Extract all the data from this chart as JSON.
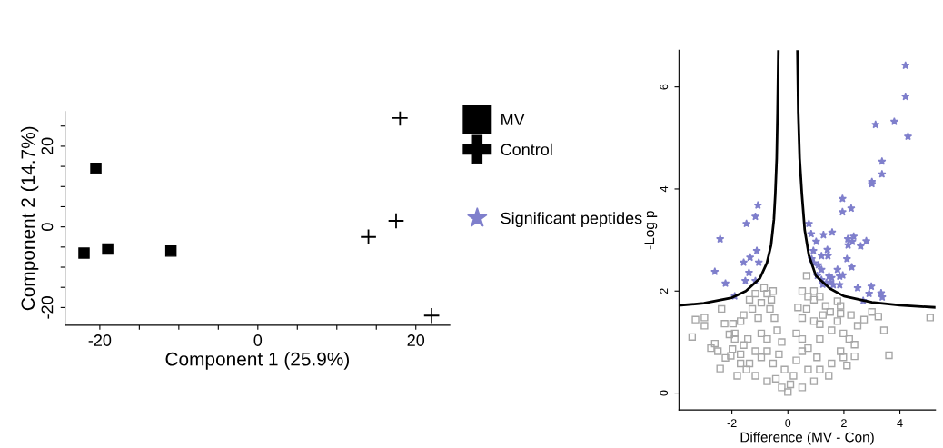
{
  "chart_data": [
    {
      "type": "scatter",
      "xlabel": "Component 1 (25.9%)",
      "ylabel": "Component 2 (14.7%)",
      "xlim": [
        -24.4,
        24.3
      ],
      "ylim": [
        -24.4,
        28.6
      ],
      "xticks": [
        -20,
        {
          "value": -15,
          "label": null
        },
        {
          "value": -10,
          "label": null
        },
        {
          "value": -5,
          "label": null
        },
        0,
        {
          "value": 5,
          "label": null
        },
        {
          "value": 10,
          "label": null
        },
        {
          "value": 15,
          "label": null
        },
        20
      ],
      "yticks": [
        -20,
        {
          "value": -15,
          "label": null
        },
        {
          "value": -10,
          "label": null
        },
        {
          "value": -5,
          "label": null
        },
        0,
        {
          "value": 5,
          "label": null
        },
        {
          "value": 10,
          "label": null
        },
        {
          "value": 15,
          "label": null
        },
        20,
        {
          "value": 25,
          "label": null
        }
      ],
      "grid": false,
      "legend": "right",
      "series": [
        {
          "name": "MV",
          "color": "#000000",
          "marker": "square",
          "x": [
            -20.5,
            -22,
            -19,
            -11
          ],
          "values": [
            14.5,
            -6.5,
            -5.5,
            -6
          ]
        },
        {
          "name": "Control",
          "color": "#000000",
          "marker": "cross",
          "x": [
            18,
            14,
            17.5,
            22
          ],
          "values": [
            27,
            -2.5,
            1.5,
            -22
          ]
        }
      ]
    },
    {
      "type": "scatter",
      "xlabel": "Difference (MV - Con)",
      "ylabel": "-Log p",
      "xlim": [
        -3.89,
        5.27
      ],
      "ylim": [
        -0.33,
        6.72
      ],
      "xticks": [
        -2,
        0,
        2,
        4
      ],
      "yticks": [
        0,
        2,
        4,
        6
      ],
      "grid": false,
      "legend": "left",
      "series": [
        {
          "color": "#a6a6a6",
          "marker": "square",
          "x": [
            -0.53,
            -0.85,
            -1.16,
            -1.37,
            -1.27,
            -1.58,
            -1.69,
            -0.95,
            -0.64,
            -0.48,
            -0.38,
            -0.22,
            -0.74,
            -0.95,
            -0.32,
            -0.74,
            -1.16,
            -1.58,
            -1.69,
            -1.48,
            -1.69,
            -1.9,
            -1.9,
            -0.12,
            -0.53,
            -0.95,
            -1.37,
            -1.16,
            -0.74,
            -0.43,
            -0.22,
            0,
            -0.74,
            -0.59,
            -1.06,
            -1.43,
            0.67,
            0.51,
            0.72,
            0.93,
            1.14,
            1.25,
            0.93,
            0.51,
            0.36,
            0.3,
            0.51,
            0.72,
            1.14,
            1.56,
            1.98,
            1.88,
            1.56,
            1.46,
            1.14,
            0.72,
            0.3,
            0.2,
            0.09,
            1.51,
            1.88,
            1.77,
            1.35,
            0.93,
            0.67,
            1.14,
            1.77,
            2.19,
            1.98,
            1.04,
            0.51,
            0.93,
            0.51,
            -3.42,
            -3.3,
            -2.98,
            -2.98,
            -2.37,
            -2.75,
            -2.42,
            -2.23,
            -2.04,
            -2.61,
            -2.5,
            -2.26,
            -2.09,
            -1.96,
            -1.81,
            -1.98,
            5.08,
            3.61,
            3.43,
            3.23,
            3.0,
            2.38,
            2.38,
            2.11,
            2.72,
            2.49,
            2.25,
            1.88
          ],
          "values": [
            2.0,
            2.06,
            1.95,
            1.83,
            1.65,
            1.53,
            1.41,
            1.77,
            1.65,
            1.47,
            1.23,
            1.0,
            1.06,
            1.17,
            0.76,
            0.82,
            0.82,
            0.94,
            0.76,
            0.46,
            0.58,
            1.06,
            1.17,
            0.46,
            0.58,
            0.7,
            0.58,
            0.34,
            0.23,
            0.28,
            0.11,
            0.02,
            1.95,
            1.83,
            1.47,
            1.06,
            2.3,
            2.0,
            1.89,
            2.0,
            1.89,
            1.53,
            1.41,
            1.47,
            1.68,
            1.17,
            1.06,
            0.88,
            1.06,
            1.23,
            1.17,
            0.82,
            0.58,
            0.34,
            0.46,
            0.46,
            0.64,
            0.34,
            0.17,
            1.59,
            1.71,
            1.8,
            1.71,
            1.83,
            1.65,
            1.35,
            1.41,
            1.06,
            0.7,
            0.7,
            0.82,
            0.23,
            0.11,
            1.1,
            1.44,
            1.48,
            1.32,
            1.65,
            0.88,
            0.48,
            0.69,
            0.73,
            0.97,
            0.82,
            1.36,
            1.15,
            1.36,
            0.34,
            0.86,
            1.48,
            0.74,
            1.23,
            1.5,
            1.59,
            0.95,
            0.72,
            0.54,
            1.44,
            1.32,
            1.53,
            1.56
          ]
        },
        {
          "name": "Significant peptides",
          "color": "#7f7fcc",
          "marker": "star",
          "x": [
            4.2,
            4.2,
            3.13,
            3.8,
            4.29,
            3.36,
            3.36,
            3.0,
            3.0,
            1.95,
            1.95,
            2.26,
            -1.07,
            -1.16,
            -1.48,
            0.75,
            -2.42,
            -1.11,
            -1.35,
            -1.58,
            -1.04,
            -2.61,
            -1.39,
            -1.52,
            -2.23,
            -1.16,
            -1.9,
            0.83,
            1.27,
            1.58,
            1.01,
            2.14,
            2.35,
            2.3,
            2.6,
            2.8,
            2.15,
            0.91,
            1.41,
            1.2,
            1.43,
            0.85,
            0.93,
            1.09,
            1.2,
            2.11,
            2.28,
            1.77,
            1.85,
            1.96,
            1.47,
            1.56,
            1.52,
            1.05,
            1.2,
            1.25,
            1.37,
            1.62,
            1.85,
            2.49,
            2.98,
            2.9,
            3.33,
            3.37,
            2.69
          ],
          "values": [
            6.42,
            5.81,
            5.26,
            5.32,
            5.03,
            4.54,
            4.29,
            4.14,
            4.1,
            3.81,
            3.55,
            3.62,
            3.68,
            3.46,
            3.32,
            3.32,
            3.02,
            2.79,
            2.66,
            2.56,
            2.56,
            2.38,
            2.36,
            2.2,
            2.15,
            2.2,
            1.9,
            3.12,
            3.1,
            3.15,
            2.97,
            3.02,
            3.07,
            2.97,
            2.88,
            2.98,
            2.9,
            2.79,
            2.81,
            2.69,
            2.69,
            2.63,
            2.55,
            2.51,
            2.42,
            2.63,
            2.47,
            2.42,
            2.29,
            2.31,
            2.29,
            2.26,
            2.17,
            2.3,
            2.22,
            2.13,
            2.16,
            2.12,
            2.12,
            2.06,
            2.09,
            1.95,
            1.96,
            1.88,
            1.81
          ]
        },
        {
          "type": "line",
          "color": "#000000",
          "line_style": "solid",
          "x": [
            -3.89,
            -3,
            -2,
            -1.5,
            -1.0,
            -0.75,
            -0.6,
            -0.5,
            -0.45,
            -0.4,
            -0.37,
            -0.34
          ],
          "values": [
            1.72,
            1.76,
            1.87,
            2.0,
            2.25,
            2.55,
            2.9,
            3.4,
            3.9,
            4.6,
            5.5,
            6.72
          ]
        },
        {
          "type": "line",
          "color": "#000000",
          "line_style": "solid",
          "x": [
            0.34,
            0.37,
            0.42,
            0.5,
            0.6,
            0.75,
            1.0,
            1.5,
            2,
            3,
            4,
            5.27
          ],
          "values": [
            6.72,
            5.5,
            4.6,
            3.9,
            3.2,
            2.7,
            2.3,
            2.05,
            1.9,
            1.78,
            1.72,
            1.68
          ]
        }
      ]
    }
  ]
}
